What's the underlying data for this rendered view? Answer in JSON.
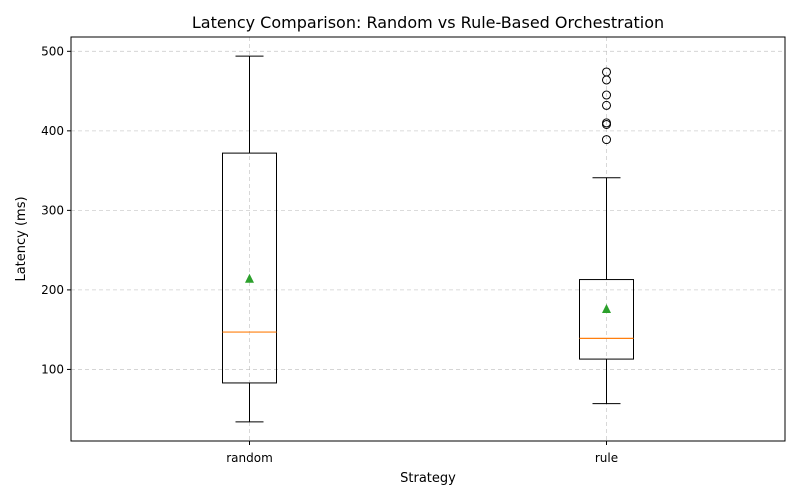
{
  "colors": {
    "median": "#ff7f0e",
    "mean": "#2ca02c",
    "box": "#000000",
    "grid": "#b0b0b0"
  },
  "chart_data": {
    "type": "box",
    "title": "Latency Comparison: Random vs Rule-Based Orchestration",
    "xlabel": "Strategy",
    "ylabel": "Latency (ms)",
    "ylim": [
      10,
      518
    ],
    "yticks": [
      100,
      200,
      300,
      400,
      500
    ],
    "grid": true,
    "categories": [
      "random",
      "rule"
    ],
    "series": [
      {
        "category": "random",
        "whisker_low": 34,
        "q1": 83,
        "median": 147,
        "q3": 372,
        "whisker_high": 494,
        "mean": 214,
        "outliers": []
      },
      {
        "category": "rule",
        "whisker_low": 57,
        "q1": 113,
        "median": 139,
        "q3": 213,
        "whisker_high": 341,
        "mean": 176,
        "outliers": [
          389,
          408,
          410,
          432,
          445,
          464,
          474
        ]
      }
    ]
  }
}
